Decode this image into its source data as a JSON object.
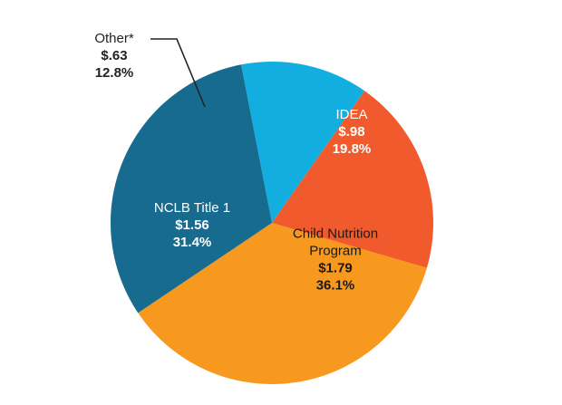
{
  "chart_data": {
    "type": "pie",
    "title": "",
    "slices": [
      {
        "name": "Other*",
        "value": 0.63,
        "value_label": "$.63",
        "percent": 12.8,
        "percent_label": "12.8%",
        "color": "#13aee0",
        "label_color": "#222222"
      },
      {
        "name": "IDEA",
        "value": 0.98,
        "value_label": "$.98",
        "percent": 19.8,
        "percent_label": "19.8%",
        "color": "#f05a2c",
        "label_color": "#ffffff"
      },
      {
        "name": "Child Nutrition Program",
        "name_lines": [
          "Child Nutrition",
          "Program"
        ],
        "value": 1.79,
        "value_label": "$1.79",
        "percent": 36.1,
        "percent_label": "36.1%",
        "color": "#f7981f",
        "label_color": "#1a1a1a"
      },
      {
        "name": "NCLB Title 1",
        "value": 1.56,
        "value_label": "$1.56",
        "percent": 31.4,
        "percent_label": "31.4%",
        "color": "#176b8f",
        "label_color": "#ffffff"
      }
    ],
    "start_angle_deg": -11,
    "direction": "clockwise",
    "legend": "none",
    "callout": {
      "slice": "Other*",
      "style": "leader-line"
    }
  }
}
